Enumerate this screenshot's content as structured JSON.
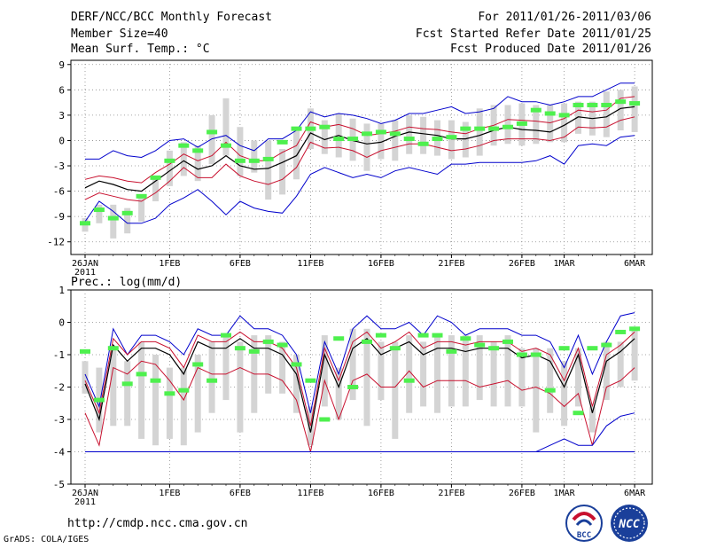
{
  "header": {
    "title": "DERF/NCC/BCC Monthly Forecast",
    "member_size": "Member Size=40",
    "variable": "Mean Surf. Temp.: °C",
    "forecast_range": "For 2011/01/26-2011/03/06",
    "started_refer": "Fcst Started Refer Date 2011/01/25",
    "produced": "Fcst Produced Date 2011/01/26"
  },
  "footer": {
    "url": "http://cmdp.ncc.cma.gov.cn",
    "credit": "GrADS: COLA/IGES",
    "logo_bcc": "BCC",
    "logo_ncc": "NCC"
  },
  "colors": {
    "box": "#d4d4d4",
    "obs": "#4ef04e",
    "mean": "#000000",
    "spread": "#c8102e",
    "extreme": "#0000cc",
    "grid": "#8a8a8a"
  },
  "chart_data": [
    {
      "type": "line",
      "title": "",
      "xlabel": "",
      "ylabel": "Mean Surf. Temp.: °C",
      "ylim": [
        -13.5,
        9.5
      ],
      "yticks": [
        9,
        6,
        3,
        0,
        -3,
        -6,
        -9,
        -12
      ],
      "xticks": [
        {
          "day": 0,
          "label": "26JAN",
          "sub": "2011"
        },
        {
          "day": 6,
          "label": "1FEB"
        },
        {
          "day": 11,
          "label": "6FEB"
        },
        {
          "day": 16,
          "label": "11FEB"
        },
        {
          "day": 21,
          "label": "16FEB"
        },
        {
          "day": 26,
          "label": "21FEB"
        },
        {
          "day": 31,
          "label": "26FEB"
        },
        {
          "day": 34,
          "label": "1MAR"
        },
        {
          "day": 39,
          "label": "6MAR"
        }
      ],
      "days": 40,
      "series": [
        {
          "name": "max",
          "color_key": "extreme",
          "values": [
            -2.2,
            -2.2,
            -1.2,
            -1.8,
            -2,
            -1.2,
            0,
            0.2,
            -0.8,
            0.2,
            0.6,
            -0.6,
            -1.2,
            0.2,
            0.2,
            1.2,
            3.4,
            2.8,
            3.2,
            3,
            2.6,
            2,
            2.4,
            3.2,
            3.2,
            3.6,
            4,
            3.2,
            3.4,
            3.8,
            5.2,
            4.6,
            4.6,
            4.2,
            4.6,
            5.2,
            5.2,
            6,
            6.8,
            6.8
          ]
        },
        {
          "name": "upper",
          "color_key": "spread",
          "values": [
            -4.6,
            -4.2,
            -4.4,
            -4.8,
            -5,
            -3.8,
            -2.8,
            -1.6,
            -2.4,
            -1.8,
            -0.2,
            -1.8,
            -2.4,
            -2.4,
            -1.4,
            -0.6,
            2.2,
            1.6,
            1.9,
            1.4,
            0.6,
            0.8,
            1.1,
            1.6,
            1.4,
            1.3,
            1,
            0.8,
            1.4,
            1.8,
            2.5,
            2.4,
            2.3,
            2.1,
            2.6,
            3.6,
            3.4,
            3.6,
            5,
            5.2
          ]
        },
        {
          "name": "mean",
          "color_key": "mean",
          "values": [
            -5.6,
            -4.8,
            -5.2,
            -5.8,
            -6,
            -4.8,
            -3.6,
            -2.4,
            -3.4,
            -3,
            -1.8,
            -3,
            -3.4,
            -3.3,
            -2.6,
            -1.8,
            0.9,
            0.1,
            0.6,
            0,
            -0.4,
            -0.2,
            0.5,
            1,
            0.8,
            0.6,
            0.2,
            0.2,
            0.6,
            1.2,
            1.6,
            1.3,
            1.2,
            1,
            1.8,
            2.8,
            2.6,
            2.8,
            3.8,
            4
          ]
        },
        {
          "name": "lower",
          "color_key": "spread",
          "values": [
            -7,
            -6.2,
            -6.6,
            -7,
            -7.2,
            -6.2,
            -4.8,
            -3.2,
            -4.4,
            -4.4,
            -2.8,
            -4.2,
            -4.8,
            -5.2,
            -4.6,
            -3.2,
            -0.2,
            -0.9,
            -0.8,
            -1.2,
            -2,
            -1.2,
            -0.8,
            -0.4,
            -0.4,
            -0.8,
            -1.2,
            -1,
            -0.6,
            0,
            0.2,
            0.2,
            0.2,
            0,
            0.4,
            1.6,
            1.5,
            1.6,
            2.4,
            2.8
          ]
        },
        {
          "name": "min",
          "color_key": "extreme",
          "values": [
            -9.6,
            -7.2,
            -8.4,
            -9.8,
            -9.8,
            -9.2,
            -7.6,
            -6.8,
            -5.8,
            -7.2,
            -8.8,
            -7.2,
            -8,
            -8.4,
            -8.6,
            -6.6,
            -4,
            -3.2,
            -3.8,
            -4.4,
            -4,
            -4.4,
            -3.6,
            -3.2,
            -3.6,
            -4,
            -2.8,
            -2.8,
            -2.6,
            -2.6,
            -2.6,
            -2.6,
            -2.4,
            -1.8,
            -2.8,
            -0.6,
            -0.4,
            -0.6,
            0.4,
            0.6
          ]
        }
      ],
      "boxes": [
        [
          -10.8,
          -9.2
        ],
        [
          -9.8,
          -7.6
        ],
        [
          -11.6,
          -7.6
        ],
        [
          -11,
          -8
        ],
        [
          -9.6,
          -6.4
        ],
        [
          -7.2,
          -4.2
        ],
        [
          -5.4,
          -1.2
        ],
        [
          -4.2,
          -0.2
        ],
        [
          -4.8,
          -0.6
        ],
        [
          -2.8,
          3
        ],
        [
          -1.8,
          5
        ],
        [
          -4.2,
          1.6
        ],
        [
          -3.8,
          0
        ],
        [
          -7,
          0
        ],
        [
          -6.4,
          -1
        ],
        [
          -4.6,
          1.6
        ],
        [
          -1,
          3.8
        ],
        [
          -1.6,
          2.4
        ],
        [
          -2,
          3.2
        ],
        [
          -2.4,
          2.6
        ],
        [
          -3.6,
          2
        ],
        [
          -2.2,
          2
        ],
        [
          -2.4,
          2.4
        ],
        [
          -1.6,
          3
        ],
        [
          -1.6,
          2.8
        ],
        [
          -1.8,
          2.4
        ],
        [
          -2.2,
          2.4
        ],
        [
          -2,
          2.2
        ],
        [
          -1.8,
          3.8
        ],
        [
          -0.6,
          4.2
        ],
        [
          -0.4,
          4.2
        ],
        [
          -0.6,
          4.4
        ],
        [
          -0.4,
          4.2
        ],
        [
          -0.2,
          4.2
        ],
        [
          -0.2,
          4.4
        ],
        [
          0.8,
          4.6
        ],
        [
          0.6,
          4.6
        ],
        [
          0.4,
          5.8
        ],
        [
          1.2,
          6
        ],
        [
          1,
          6.4
        ]
      ],
      "obs": [
        -9.8,
        -8.2,
        -9.2,
        -8.6,
        -6.6,
        -4.4,
        -2.4,
        -0.6,
        -1.2,
        1,
        -0.6,
        -2.4,
        -2.4,
        -2.2,
        -0.2,
        1.4,
        1.4,
        1.6,
        0.2,
        0.2,
        0.8,
        1,
        0.8,
        0.2,
        -0.4,
        0.2,
        0.4,
        1.4,
        1.4,
        1.4,
        1.6,
        2,
        3.6,
        3.2,
        3,
        4.2,
        4.2,
        4.2,
        4.6,
        4.4
      ]
    },
    {
      "type": "line",
      "title": "",
      "xlabel": "",
      "ylabel": "Prec.: log(mm/d)",
      "ylim": [
        -5,
        1
      ],
      "yticks": [
        1,
        0,
        -1,
        -2,
        -3,
        -4,
        -5
      ],
      "xticks": [
        {
          "day": 0,
          "label": "26JAN",
          "sub": "2011"
        },
        {
          "day": 6,
          "label": "1FEB"
        },
        {
          "day": 11,
          "label": "6FEB"
        },
        {
          "day": 16,
          "label": "11FEB"
        },
        {
          "day": 21,
          "label": "16FEB"
        },
        {
          "day": 26,
          "label": "21FEB"
        },
        {
          "day": 31,
          "label": "26FEB"
        },
        {
          "day": 34,
          "label": "1MAR"
        },
        {
          "day": 39,
          "label": "6MAR"
        }
      ],
      "days": 40,
      "series": [
        {
          "name": "max",
          "color_key": "extreme",
          "values": [
            -1.6,
            -2.6,
            -0.2,
            -1,
            -0.4,
            -0.4,
            -0.6,
            -1,
            -0.2,
            -0.4,
            -0.4,
            0.2,
            -0.2,
            -0.2,
            -0.4,
            -1,
            -2.8,
            -0.6,
            -1.6,
            -0.2,
            0.2,
            -0.2,
            -0.2,
            0,
            -0.4,
            0.2,
            0,
            -0.4,
            -0.2,
            -0.2,
            -0.2,
            -0.4,
            -0.4,
            -0.6,
            -1.4,
            -0.4,
            -1.6,
            -0.6,
            0.2,
            0.3
          ]
        },
        {
          "name": "upper",
          "color_key": "spread",
          "values": [
            -1.8,
            -2.8,
            -0.5,
            -1,
            -0.6,
            -0.6,
            -0.8,
            -1.4,
            -0.4,
            -0.6,
            -0.6,
            -0.3,
            -0.6,
            -0.6,
            -0.8,
            -1.4,
            -3.2,
            -0.8,
            -1.8,
            -0.6,
            -0.3,
            -0.8,
            -0.6,
            -0.3,
            -0.8,
            -0.6,
            -0.6,
            -0.7,
            -0.6,
            -0.6,
            -0.6,
            -0.9,
            -0.8,
            -1,
            -1.8,
            -0.8,
            -2.6,
            -1,
            -0.7,
            -0.3
          ]
        },
        {
          "name": "mean",
          "color_key": "mean",
          "values": [
            -1.9,
            -3,
            -0.7,
            -1.2,
            -0.8,
            -0.8,
            -1,
            -1.6,
            -0.6,
            -0.8,
            -0.8,
            -0.5,
            -0.8,
            -0.8,
            -1,
            -1.6,
            -3.4,
            -1,
            -2,
            -0.8,
            -0.5,
            -1,
            -0.8,
            -0.6,
            -1,
            -0.8,
            -0.8,
            -0.9,
            -0.8,
            -0.8,
            -0.8,
            -1.1,
            -1,
            -1.2,
            -2,
            -1,
            -2.8,
            -1.2,
            -0.9,
            -0.5
          ]
        },
        {
          "name": "lower",
          "color_key": "spread",
          "values": [
            -2.8,
            -3.8,
            -1.4,
            -1.6,
            -1.2,
            -1.3,
            -1.8,
            -2.4,
            -1.4,
            -1.6,
            -1.6,
            -1.4,
            -1.6,
            -1.6,
            -1.8,
            -2.4,
            -4,
            -1.8,
            -3,
            -1.8,
            -1.6,
            -2,
            -2,
            -1.5,
            -2,
            -1.8,
            -1.8,
            -1.8,
            -2,
            -1.9,
            -1.8,
            -2.1,
            -2,
            -2.2,
            -2.6,
            -2.2,
            -3.8,
            -2,
            -1.8,
            -1.4
          ]
        },
        {
          "name": "min",
          "color_key": "extreme",
          "values": [
            -4,
            -4,
            -4,
            -4,
            -4,
            -4,
            -4,
            -4,
            -4,
            -4,
            -4,
            -4,
            -4,
            -4,
            -4,
            -4,
            -4,
            -4,
            -4,
            -4,
            -4,
            -4,
            -4,
            -4,
            -4,
            -4,
            -4,
            -4,
            -4,
            -4,
            -4,
            -4,
            -4,
            -3.8,
            -3.6,
            -3.8,
            -3.8,
            -3.2,
            -2.9,
            -2.8
          ]
        },
        {
          "name": "min-base",
          "color_key": "extreme",
          "values": [
            -4,
            -4,
            -4,
            -4,
            -4,
            -4,
            -4,
            -4,
            -4,
            -4,
            -4,
            -4,
            -4,
            -4,
            -4,
            -4,
            -4,
            -4,
            -4,
            -4,
            -4,
            -4,
            -4,
            -4,
            -4,
            -4,
            -4,
            -4,
            -4,
            -4,
            -4,
            -4,
            -4,
            -4,
            -4,
            -4,
            -4,
            -4,
            -4,
            -4
          ]
        }
      ],
      "boxes": [
        [
          -2.2,
          -1.2
        ],
        [
          -3.4,
          -1.4
        ],
        [
          -3.2,
          -0.8
        ],
        [
          -3.2,
          -1.2
        ],
        [
          -3.6,
          -0.6
        ],
        [
          -3.8,
          -1
        ],
        [
          -3.6,
          -1.4
        ],
        [
          -3.8,
          -1.4
        ],
        [
          -3.4,
          -1
        ],
        [
          -2.8,
          -0.6
        ],
        [
          -2.4,
          -0.4
        ],
        [
          -3.4,
          -0.6
        ],
        [
          -2.8,
          -0.4
        ],
        [
          -2.2,
          -0.4
        ],
        [
          -2.2,
          -0.6
        ],
        [
          -2.8,
          -1
        ],
        [
          -3.8,
          -2.6
        ],
        [
          -2.6,
          -0.4
        ],
        [
          -3,
          -1.4
        ],
        [
          -2.4,
          -0.2
        ],
        [
          -3.2,
          -0.2
        ],
        [
          -2.4,
          -0.6
        ],
        [
          -3.6,
          -0.6
        ],
        [
          -2.8,
          -0.4
        ],
        [
          -2.6,
          -0.6
        ],
        [
          -2.8,
          -0.4
        ],
        [
          -2.6,
          -0.4
        ],
        [
          -2.6,
          -0.4
        ],
        [
          -2.4,
          -0.4
        ],
        [
          -2.6,
          -0.6
        ],
        [
          -2.6,
          -0.4
        ],
        [
          -2.6,
          -0.8
        ],
        [
          -3.4,
          -0.8
        ],
        [
          -2.8,
          -0.8
        ],
        [
          -3.2,
          -1.2
        ],
        [
          -2.6,
          -0.8
        ],
        [
          -3.4,
          -2.6
        ],
        [
          -2.4,
          -0.6
        ],
        [
          -2,
          -0.6
        ],
        [
          -1.8,
          -0.2
        ]
      ],
      "obs": [
        -0.9,
        -2.4,
        -0.8,
        -1.9,
        -1.6,
        -1.8,
        -2.2,
        -2.1,
        -1.3,
        -1.8,
        -0.4,
        -0.8,
        -0.9,
        -0.6,
        -0.7,
        -1.3,
        -1.8,
        -3,
        -0.5,
        -2,
        -0.6,
        -0.4,
        -0.8,
        -1.8,
        -0.4,
        -0.4,
        -0.9,
        -0.5,
        -0.7,
        -0.8,
        -0.6,
        -1,
        -1,
        -2.1,
        -0.8,
        -2.8,
        -0.8,
        -0.7,
        -0.3,
        -0.2
      ]
    }
  ]
}
